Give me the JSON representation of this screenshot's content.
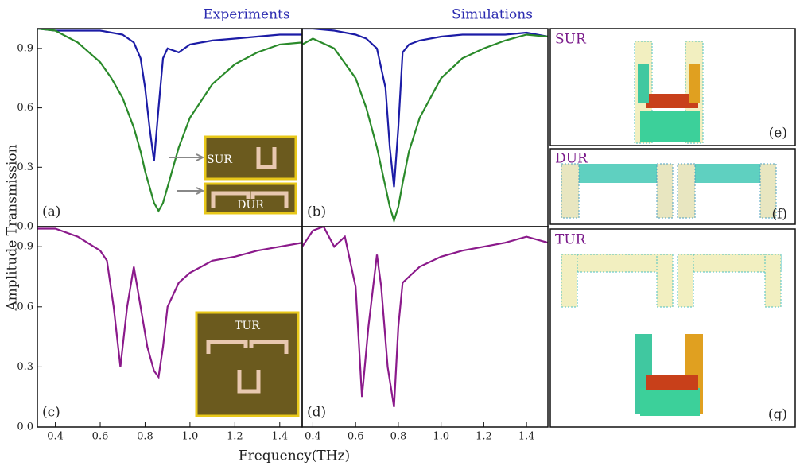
{
  "chart_data": [
    {
      "type": "line",
      "title": "Experiments",
      "panel_label": "(a)",
      "annotations": [
        "SUR",
        "DUR"
      ],
      "x": [
        0.32,
        0.4,
        0.5,
        0.6,
        0.65,
        0.7,
        0.75,
        0.78,
        0.8,
        0.82,
        0.84,
        0.86,
        0.88,
        0.9,
        0.95,
        1.0,
        1.1,
        1.2,
        1.3,
        1.4,
        1.5
      ],
      "series": [
        {
          "color": "#1c1ca6",
          "values": [
            1.0,
            0.99,
            0.99,
            0.99,
            0.98,
            0.97,
            0.93,
            0.85,
            0.7,
            0.5,
            0.33,
            0.6,
            0.85,
            0.9,
            0.88,
            0.92,
            0.94,
            0.95,
            0.96,
            0.97,
            0.97
          ]
        },
        {
          "color": "#2a8a2a",
          "values": [
            1.0,
            0.99,
            0.93,
            0.83,
            0.75,
            0.65,
            0.5,
            0.38,
            0.28,
            0.2,
            0.12,
            0.08,
            0.12,
            0.2,
            0.4,
            0.55,
            0.72,
            0.82,
            0.88,
            0.92,
            0.93
          ]
        }
      ],
      "xlim": [
        0.32,
        1.5
      ],
      "ylim": [
        0,
        1.0
      ],
      "yticks": [
        {
          "value": 0,
          "label": "0.0"
        },
        0.3,
        0.6,
        0.9
      ]
    },
    {
      "type": "line",
      "title": "Simulations",
      "panel_label": "(b)",
      "x": [
        0.35,
        0.4,
        0.5,
        0.6,
        0.65,
        0.7,
        0.74,
        0.76,
        0.78,
        0.8,
        0.82,
        0.85,
        0.9,
        1.0,
        1.1,
        1.2,
        1.3,
        1.4,
        1.5
      ],
      "series": [
        {
          "color": "#1c1ca6",
          "values": [
            1.0,
            1.0,
            0.99,
            0.97,
            0.95,
            0.9,
            0.7,
            0.4,
            0.2,
            0.5,
            0.88,
            0.92,
            0.94,
            0.96,
            0.97,
            0.97,
            0.97,
            0.98,
            0.96
          ]
        },
        {
          "color": "#2a8a2a",
          "values": [
            0.92,
            0.95,
            0.9,
            0.75,
            0.6,
            0.4,
            0.2,
            0.1,
            0.03,
            0.1,
            0.22,
            0.38,
            0.55,
            0.75,
            0.85,
            0.9,
            0.94,
            0.97,
            0.96
          ]
        }
      ],
      "xlim": [
        0.35,
        1.5
      ],
      "ylim": [
        0,
        1.0
      ]
    },
    {
      "type": "line",
      "panel_label": "(c)",
      "annotations": [
        "TUR"
      ],
      "x": [
        0.32,
        0.4,
        0.5,
        0.6,
        0.63,
        0.66,
        0.69,
        0.72,
        0.75,
        0.78,
        0.81,
        0.84,
        0.86,
        0.88,
        0.9,
        0.95,
        1.0,
        1.1,
        1.2,
        1.3,
        1.4,
        1.5
      ],
      "series": [
        {
          "color": "#8b1a8b",
          "values": [
            0.99,
            0.99,
            0.95,
            0.88,
            0.83,
            0.6,
            0.3,
            0.6,
            0.8,
            0.6,
            0.4,
            0.28,
            0.25,
            0.4,
            0.6,
            0.72,
            0.77,
            0.83,
            0.85,
            0.88,
            0.9,
            0.92
          ]
        }
      ],
      "xlim": [
        0.32,
        1.5
      ],
      "ylim": [
        0,
        1.0
      ],
      "xticks": [
        0.4,
        0.6,
        0.8,
        {
          "value": 1,
          "label": "1.0"
        },
        1.2,
        1.4
      ],
      "yticks": [
        {
          "value": 0,
          "label": "0.0"
        },
        0.3,
        0.6,
        0.9
      ]
    },
    {
      "type": "line",
      "panel_label": "(d)",
      "x": [
        0.35,
        0.4,
        0.45,
        0.5,
        0.55,
        0.6,
        0.63,
        0.66,
        0.7,
        0.72,
        0.75,
        0.78,
        0.8,
        0.82,
        0.85,
        0.9,
        1.0,
        1.1,
        1.2,
        1.3,
        1.4,
        1.5
      ],
      "series": [
        {
          "color": "#8b1a8b",
          "values": [
            0.9,
            0.98,
            1.0,
            0.9,
            0.95,
            0.7,
            0.15,
            0.5,
            0.86,
            0.7,
            0.3,
            0.1,
            0.5,
            0.72,
            0.75,
            0.8,
            0.85,
            0.88,
            0.9,
            0.92,
            0.95,
            0.92
          ]
        }
      ],
      "xlim": [
        0.35,
        1.5
      ],
      "ylim": [
        0,
        1.0
      ],
      "xticks": [
        0.4,
        0.6,
        0.8,
        {
          "value": 1,
          "label": "1.0"
        },
        1.2,
        1.4
      ]
    }
  ],
  "x_label": "Frequency(THz)",
  "y_label": "Amplitude Transmission",
  "field_panels": [
    {
      "name": "SUR",
      "label": "(e)"
    },
    {
      "name": "DUR",
      "label": "(f)"
    },
    {
      "name": "TUR",
      "label": "(g)"
    }
  ]
}
